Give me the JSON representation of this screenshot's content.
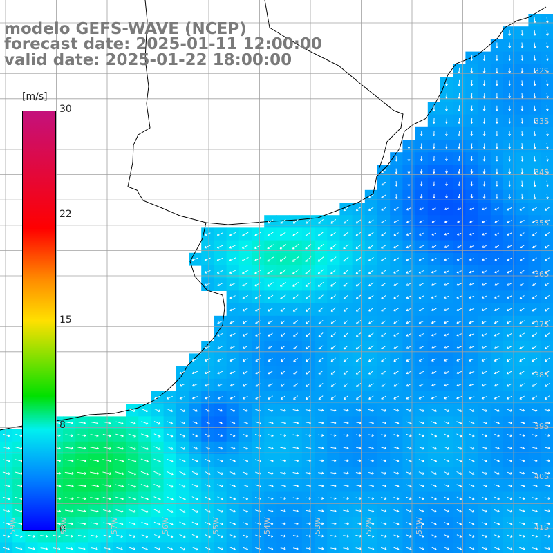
{
  "title": {
    "line1": "modelo GEFS-WAVE (NCEP)",
    "line2": "forecast date: 2025-01-11 12:00:00",
    "line3": "valid date: 2025-01-22 18:00:00"
  },
  "colorbar": {
    "unit": "[m/s]",
    "ticks": [
      "30",
      "22",
      "15",
      "8",
      "0"
    ],
    "range": [
      0,
      30
    ],
    "colors": [
      "#0000ff",
      "#0080ff",
      "#00f0f0",
      "#00e000",
      "#ffe000",
      "#ff8a00",
      "#ff0000",
      "#c4117c"
    ]
  },
  "map": {
    "land_color": "#ffffff",
    "grid_color": "#a0a0a0",
    "arrow_color": "#ffffff",
    "lat_labels": [
      "32S",
      "33S",
      "34S",
      "35S",
      "36S",
      "37S",
      "38S",
      "39S",
      "40S",
      "41S"
    ],
    "lon_labels": [
      "59W",
      "58W",
      "57W",
      "56W",
      "55W",
      "54W",
      "53W",
      "52W",
      "51W"
    ]
  }
}
